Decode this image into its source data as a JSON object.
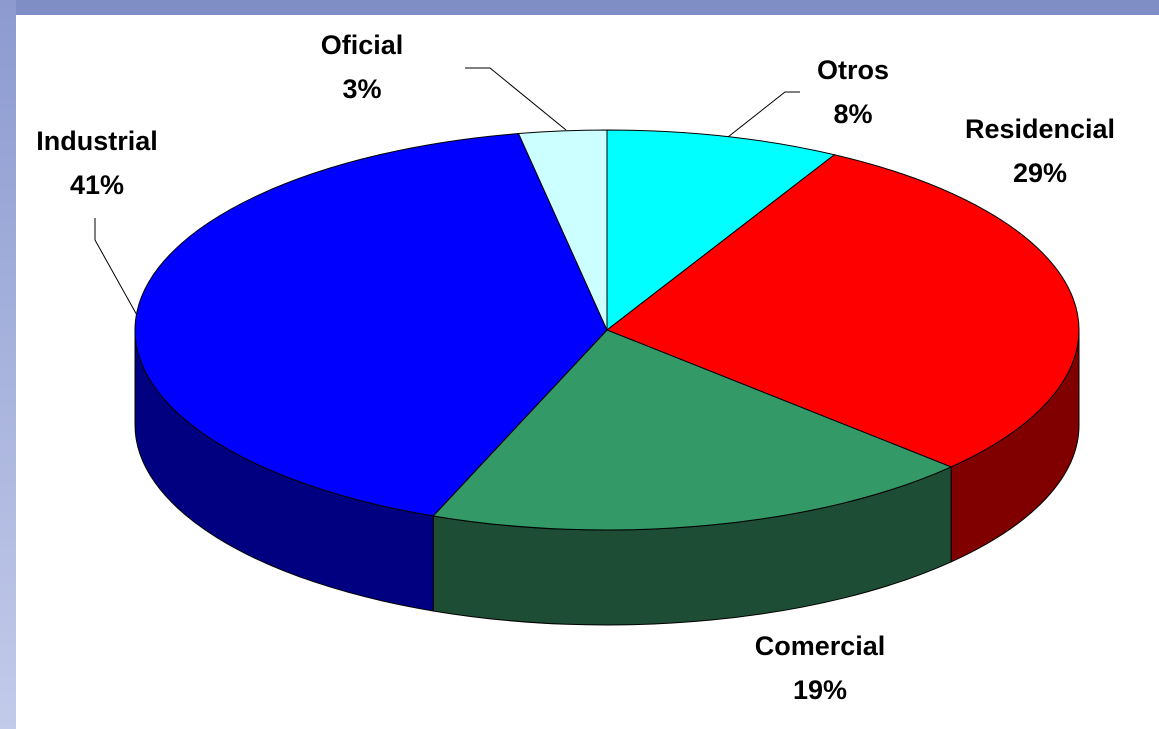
{
  "chart_data": {
    "type": "pie3d",
    "categories": [
      "Otros",
      "Residencial",
      "Comercial",
      "Industrial",
      "Oficial"
    ],
    "values": [
      8,
      29,
      19,
      41,
      3
    ],
    "value_labels": [
      "8%",
      "29%",
      "19%",
      "41%",
      "3%"
    ],
    "colors": [
      "#00ffff",
      "#ff0000",
      "#339966",
      "#0000ff",
      "#ccffff"
    ],
    "side_colors": [
      "#008080",
      "#800000",
      "#1d4d34",
      "#000080",
      "#668080"
    ]
  }
}
